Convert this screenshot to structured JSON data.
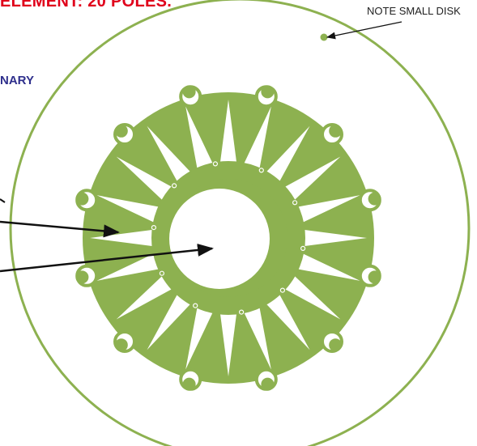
{
  "header": {
    "title_fragment": "ELEMENT: 20 POLES.",
    "title_color": "#e0001b"
  },
  "labels": {
    "boundary_fragment": "NARY",
    "boundary_color": "#2e2f8c",
    "note_small_disk": "NOTE SMALL DISK",
    "note_color": "#222222"
  },
  "figure": {
    "green_color": "#8db150",
    "arrow_color": "#111111",
    "star_points": 20,
    "edge_disks": 12
  }
}
